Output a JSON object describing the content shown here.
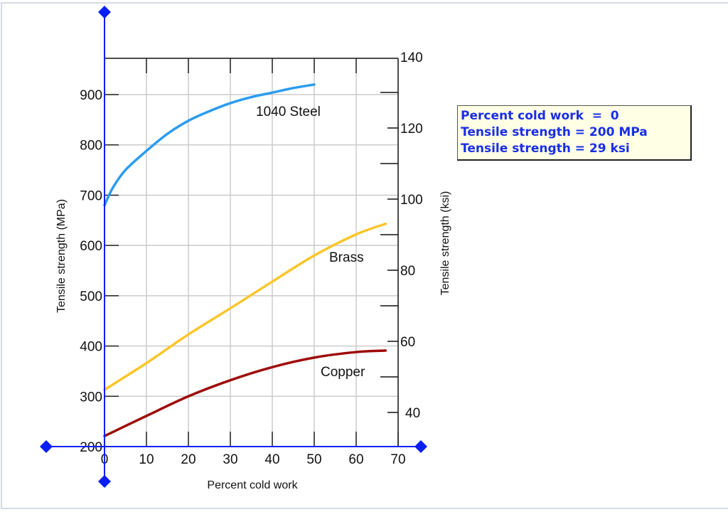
{
  "chart_data": {
    "type": "line",
    "title": "",
    "xlabel": "Percent cold work",
    "ylabel": "Tensile strength (MPa)",
    "ylabel_right": "Tensile strength (ksi)",
    "xlim": [
      0,
      70
    ],
    "ylim": [
      200,
      980
    ],
    "ylim_right": [
      30,
      140
    ],
    "x_ticks": [
      "0",
      "10",
      "20",
      "30",
      "40",
      "50",
      "60",
      "70"
    ],
    "y_ticks": [
      "200",
      "300",
      "400",
      "500",
      "600",
      "700",
      "800",
      "900"
    ],
    "y_ticks_right": [
      "40",
      "60",
      "80",
      "100",
      "120",
      "140"
    ],
    "grid": true,
    "series": [
      {
        "name": "1040 Steel",
        "color": "#2b9cf0",
        "x": [
          0,
          2,
          5,
          10,
          15,
          20,
          25,
          30,
          35,
          40,
          45,
          50
        ],
        "values": [
          680,
          715,
          750,
          788,
          822,
          848,
          867,
          883,
          895,
          904,
          913,
          920
        ]
      },
      {
        "name": "Brass",
        "color": "#f9c62a",
        "x": [
          0,
          10,
          20,
          30,
          40,
          50,
          60,
          67
        ],
        "values": [
          313,
          366,
          423,
          475,
          528,
          580,
          622,
          643
        ]
      },
      {
        "name": "Copper",
        "color": "#9e0a0a",
        "x": [
          0,
          10,
          20,
          30,
          40,
          50,
          60,
          67
        ],
        "values": [
          221,
          261,
          300,
          332,
          358,
          377,
          388,
          391
        ]
      }
    ],
    "annotations": [
      "1040 Steel",
      "Brass",
      "Copper"
    ],
    "cursor": {
      "x": 0,
      "y_mpa": 200
    }
  },
  "readout": {
    "line1": "Percent cold work  =  0",
    "line2": "Tensile strength = 200 MPa",
    "line3": "Tensile strength = 29 ksi"
  },
  "colors": {
    "cursor": "#0a1ff5",
    "grid": "#cccccc",
    "readout_text": "#1a2ee6",
    "readout_bg": "#ffffe6"
  }
}
